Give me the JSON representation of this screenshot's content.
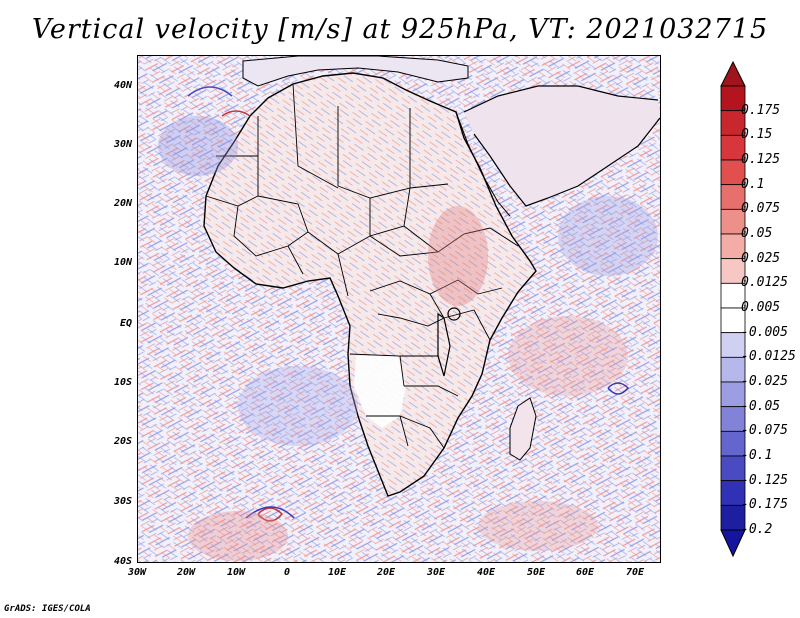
{
  "title": "Vertical velocity [m/s] at 925hPa, VT: 2021032715",
  "footer": "GrADS: IGES/COLA",
  "map": {
    "lat_labels": [
      "40N",
      "30N",
      "20N",
      "10N",
      "EQ",
      "10S",
      "20S",
      "30S",
      "40S"
    ],
    "lon_labels": [
      "30W",
      "20W",
      "10W",
      "0",
      "10E",
      "20E",
      "30E",
      "40E",
      "50E",
      "60E",
      "70E"
    ]
  },
  "colorbar": {
    "labels": [
      "0.175",
      "0.15",
      "0.125",
      "0.1",
      "0.075",
      "0.05",
      "0.025",
      "0.0125",
      "0.005",
      "-0.005",
      "-0.0125",
      "-0.025",
      "-0.05",
      "-0.075",
      "-0.1",
      "-0.125",
      "-0.175",
      "-0.2"
    ],
    "colors": [
      "#b4141e",
      "#c8282d",
      "#d7373c",
      "#e1504f",
      "#e8706c",
      "#ee908a",
      "#f3aca6",
      "#f7c8c3",
      "#ffffff",
      "#ffffff",
      "#cfd0f2",
      "#b6b7ea",
      "#9c9de2",
      "#8182d8",
      "#6566cd",
      "#4a4bc2",
      "#3031b4",
      "#1e1ea0"
    ],
    "top_arrow_color": "#a0141e",
    "bottom_arrow_color": "#1414a0"
  }
}
